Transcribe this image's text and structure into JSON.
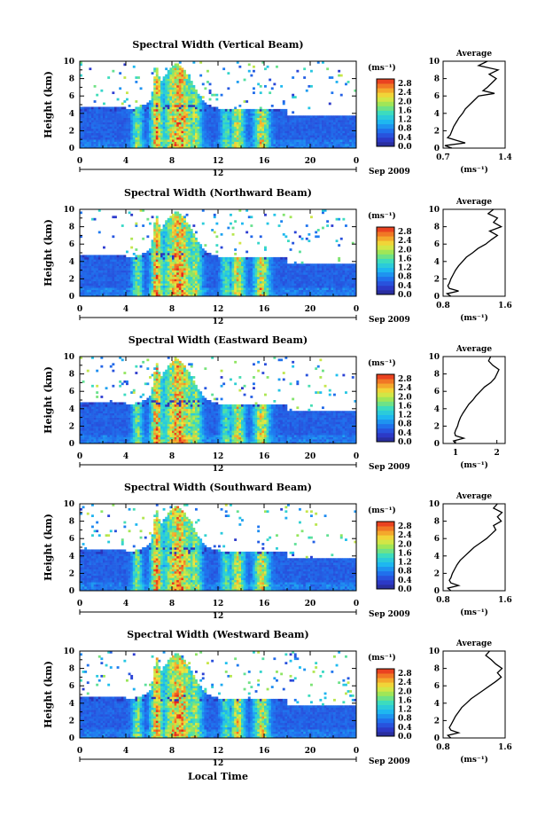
{
  "figure": {
    "xlabel": "Local Time",
    "date_label": "Sep 2009",
    "ylabel": "Height (km)",
    "avg_title": "Average",
    "avg_xlabel": "(ms⁻¹)",
    "colorbar_unit": "(ms⁻¹)"
  },
  "chart_data": [
    {
      "type": "heatmap",
      "title": "Spectral Width (Vertical Beam)",
      "xlabel": "Local Time",
      "ylabel": "Height (km)",
      "x_ticks": [
        "0",
        "4",
        "8",
        "12",
        "16",
        "20",
        "0"
      ],
      "x_sub": "12",
      "xlim": [
        0,
        24
      ],
      "y_ticks": [
        "0",
        "2",
        "4",
        "6",
        "8",
        "10"
      ],
      "ylim": [
        0,
        10
      ],
      "colorbar": {
        "unit": "(ms⁻¹)",
        "ticks": [
          "0.0",
          "0.4",
          "0.8",
          "1.2",
          "1.6",
          "2.0",
          "2.4",
          "2.8"
        ],
        "range": [
          0,
          3.0
        ]
      },
      "average": {
        "title": "Average",
        "xlabel": "(ms⁻¹)",
        "x_ticks": [
          "0.7",
          "1.4"
        ],
        "xlim": [
          0.7,
          1.4
        ],
        "profile": [
          [
            0.0,
            0.8
          ],
          [
            0.3,
            0.72
          ],
          [
            0.6,
            0.95
          ],
          [
            0.9,
            0.85
          ],
          [
            1.2,
            0.75
          ],
          [
            1.5,
            0.78
          ],
          [
            2.0,
            0.8
          ],
          [
            2.5,
            0.82
          ],
          [
            3.0,
            0.85
          ],
          [
            3.5,
            0.88
          ],
          [
            4.0,
            0.92
          ],
          [
            4.5,
            0.95
          ],
          [
            5.0,
            1.0
          ],
          [
            5.5,
            1.05
          ],
          [
            6.0,
            1.1
          ],
          [
            6.3,
            1.28
          ],
          [
            6.6,
            1.15
          ],
          [
            7.0,
            1.2
          ],
          [
            7.5,
            1.25
          ],
          [
            8.0,
            1.3
          ],
          [
            8.5,
            1.22
          ],
          [
            9.0,
            1.32
          ],
          [
            9.5,
            1.1
          ],
          [
            10.0,
            1.2
          ]
        ]
      }
    },
    {
      "type": "heatmap",
      "title": "Spectral Width (Northward Beam)",
      "xlabel": "Local Time",
      "ylabel": "Height (km)",
      "x_ticks": [
        "0",
        "4",
        "8",
        "12",
        "16",
        "20",
        "0"
      ],
      "x_sub": "12",
      "xlim": [
        0,
        24
      ],
      "y_ticks": [
        "0",
        "2",
        "4",
        "6",
        "8",
        "10"
      ],
      "ylim": [
        0,
        10
      ],
      "colorbar": {
        "unit": "(ms⁻¹)",
        "ticks": [
          "0.0",
          "0.4",
          "0.8",
          "1.2",
          "1.6",
          "2.0",
          "2.4",
          "2.8"
        ],
        "range": [
          0,
          3.0
        ]
      },
      "average": {
        "title": "Average",
        "xlabel": "(ms⁻¹)",
        "x_ticks": [
          "0.8",
          "1.6"
        ],
        "xlim": [
          0.8,
          1.6
        ],
        "profile": [
          [
            0.0,
            0.9
          ],
          [
            0.3,
            0.85
          ],
          [
            0.6,
            1.0
          ],
          [
            0.9,
            0.88
          ],
          [
            1.2,
            0.86
          ],
          [
            1.5,
            0.88
          ],
          [
            2.0,
            0.9
          ],
          [
            2.5,
            0.93
          ],
          [
            3.0,
            0.96
          ],
          [
            3.5,
            1.0
          ],
          [
            4.0,
            1.05
          ],
          [
            4.5,
            1.1
          ],
          [
            5.0,
            1.18
          ],
          [
            5.5,
            1.25
          ],
          [
            6.0,
            1.35
          ],
          [
            6.5,
            1.42
          ],
          [
            7.0,
            1.5
          ],
          [
            7.5,
            1.4
          ],
          [
            8.0,
            1.55
          ],
          [
            8.5,
            1.45
          ],
          [
            9.0,
            1.5
          ],
          [
            9.5,
            1.38
          ],
          [
            10.0,
            1.45
          ]
        ]
      }
    },
    {
      "type": "heatmap",
      "title": "Spectral Width (Eastward Beam)",
      "xlabel": "Local Time",
      "ylabel": "Height (km)",
      "x_ticks": [
        "0",
        "4",
        "8",
        "12",
        "16",
        "20",
        "0"
      ],
      "x_sub": "12",
      "xlim": [
        0,
        24
      ],
      "y_ticks": [
        "0",
        "2",
        "4",
        "6",
        "8",
        "10"
      ],
      "ylim": [
        0,
        10
      ],
      "colorbar": {
        "unit": "(ms⁻¹)",
        "ticks": [
          "0.0",
          "0.4",
          "0.8",
          "1.2",
          "1.6",
          "2.0",
          "2.4",
          "2.8"
        ],
        "range": [
          0,
          3.0
        ]
      },
      "average": {
        "title": "Average",
        "xlabel": "(ms⁻¹)",
        "x_ticks": [
          "1",
          "2"
        ],
        "xlim": [
          0.7,
          2.2
        ],
        "profile": [
          [
            0.0,
            1.0
          ],
          [
            0.3,
            0.95
          ],
          [
            0.6,
            1.2
          ],
          [
            0.9,
            1.0
          ],
          [
            1.2,
            0.98
          ],
          [
            1.5,
            1.0
          ],
          [
            2.0,
            1.05
          ],
          [
            2.5,
            1.08
          ],
          [
            3.0,
            1.12
          ],
          [
            3.5,
            1.18
          ],
          [
            4.0,
            1.25
          ],
          [
            4.5,
            1.32
          ],
          [
            5.0,
            1.42
          ],
          [
            5.5,
            1.5
          ],
          [
            6.0,
            1.6
          ],
          [
            6.5,
            1.7
          ],
          [
            7.0,
            1.85
          ],
          [
            7.5,
            1.95
          ],
          [
            8.0,
            2.0
          ],
          [
            8.5,
            2.05
          ],
          [
            9.0,
            1.9
          ],
          [
            9.5,
            1.8
          ],
          [
            10.0,
            1.85
          ]
        ]
      }
    },
    {
      "type": "heatmap",
      "title": "Spectral Width (Southward Beam)",
      "xlabel": "Local Time",
      "ylabel": "Height (km)",
      "x_ticks": [
        "0",
        "4",
        "8",
        "12",
        "16",
        "20",
        "0"
      ],
      "x_sub": "12",
      "xlim": [
        0,
        24
      ],
      "y_ticks": [
        "0",
        "2",
        "4",
        "6",
        "8",
        "10"
      ],
      "ylim": [
        0,
        10
      ],
      "colorbar": {
        "unit": "(ms⁻¹)",
        "ticks": [
          "0.0",
          "0.4",
          "0.8",
          "1.2",
          "1.6",
          "2.0",
          "2.4",
          "2.8"
        ],
        "range": [
          0,
          3.0
        ]
      },
      "average": {
        "title": "Average",
        "xlabel": "(ms⁻¹)",
        "x_ticks": [
          "0.8",
          "1.6"
        ],
        "xlim": [
          0.8,
          1.6
        ],
        "profile": [
          [
            0.0,
            0.9
          ],
          [
            0.3,
            0.86
          ],
          [
            0.6,
            1.0
          ],
          [
            0.9,
            0.9
          ],
          [
            1.2,
            0.88
          ],
          [
            1.5,
            0.9
          ],
          [
            2.0,
            0.92
          ],
          [
            2.5,
            0.95
          ],
          [
            3.0,
            0.98
          ],
          [
            3.5,
            1.02
          ],
          [
            4.0,
            1.08
          ],
          [
            4.5,
            1.14
          ],
          [
            5.0,
            1.2
          ],
          [
            5.5,
            1.28
          ],
          [
            6.0,
            1.36
          ],
          [
            6.5,
            1.42
          ],
          [
            7.0,
            1.48
          ],
          [
            7.5,
            1.45
          ],
          [
            8.0,
            1.55
          ],
          [
            8.5,
            1.5
          ],
          [
            9.0,
            1.56
          ],
          [
            9.5,
            1.45
          ],
          [
            10.0,
            1.5
          ]
        ]
      }
    },
    {
      "type": "heatmap",
      "title": "Spectral Width (Westward Beam)",
      "xlabel": "Local Time",
      "ylabel": "Height (km)",
      "x_ticks": [
        "0",
        "4",
        "8",
        "12",
        "16",
        "20",
        "0"
      ],
      "x_sub": "12",
      "xlim": [
        0,
        24
      ],
      "y_ticks": [
        "0",
        "2",
        "4",
        "6",
        "8",
        "10"
      ],
      "ylim": [
        0,
        10
      ],
      "colorbar": {
        "unit": "(ms⁻¹)",
        "ticks": [
          "0.0",
          "0.4",
          "0.8",
          "1.2",
          "1.6",
          "2.0",
          "2.4",
          "2.8"
        ],
        "range": [
          0,
          3.0
        ]
      },
      "average": {
        "title": "Average",
        "xlabel": "(ms⁻¹)",
        "x_ticks": [
          "0.8",
          "1.6"
        ],
        "xlim": [
          0.8,
          1.6
        ],
        "profile": [
          [
            0.0,
            0.9
          ],
          [
            0.3,
            0.86
          ],
          [
            0.6,
            1.0
          ],
          [
            0.9,
            0.9
          ],
          [
            1.2,
            0.88
          ],
          [
            1.5,
            0.9
          ],
          [
            2.0,
            0.93
          ],
          [
            2.5,
            0.96
          ],
          [
            3.0,
            1.0
          ],
          [
            3.5,
            1.04
          ],
          [
            4.0,
            1.1
          ],
          [
            4.5,
            1.16
          ],
          [
            5.0,
            1.24
          ],
          [
            5.5,
            1.32
          ],
          [
            6.0,
            1.4
          ],
          [
            6.5,
            1.48
          ],
          [
            7.0,
            1.55
          ],
          [
            7.5,
            1.5
          ],
          [
            8.0,
            1.56
          ],
          [
            8.5,
            1.48
          ],
          [
            9.0,
            1.42
          ],
          [
            9.5,
            1.35
          ],
          [
            10.0,
            1.4
          ]
        ]
      }
    }
  ]
}
